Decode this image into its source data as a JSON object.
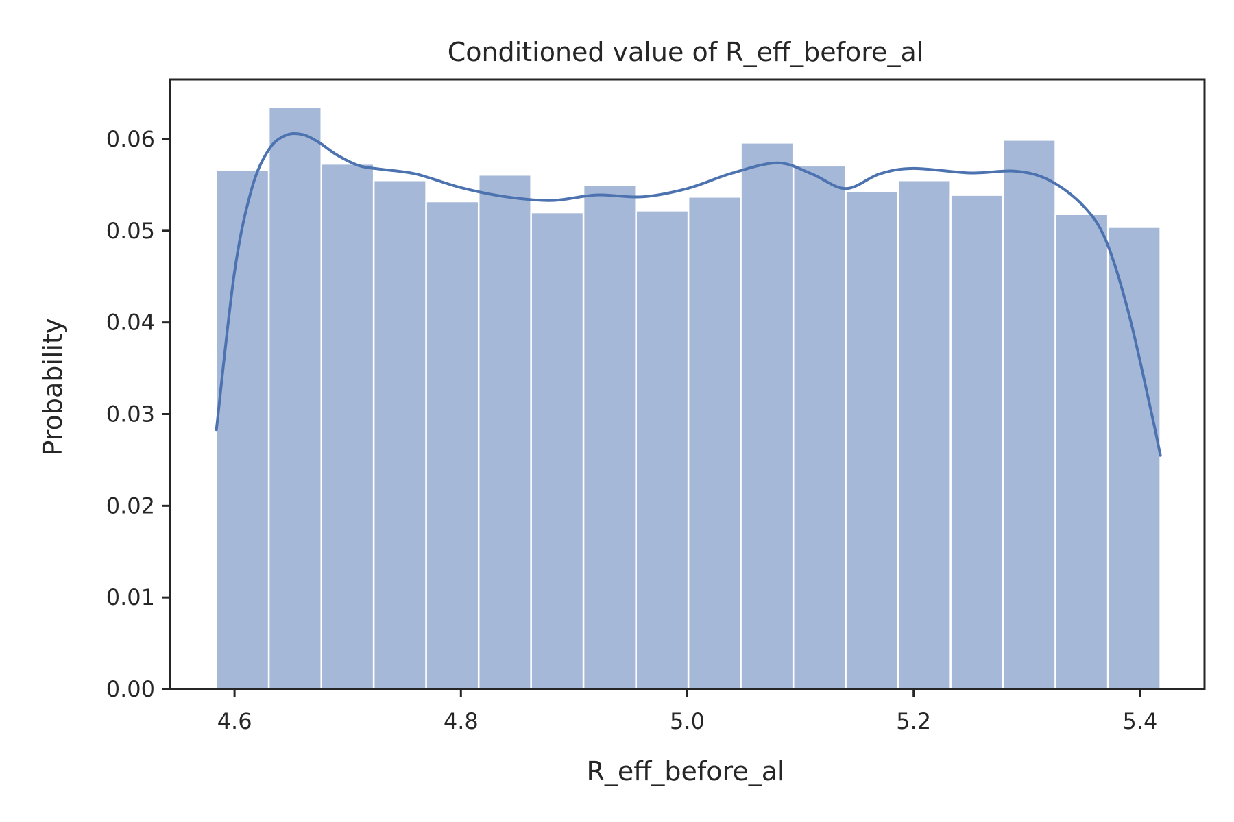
{
  "chart_data": {
    "type": "bar",
    "subtype": "histogram-with-kde",
    "title": "Conditioned value of R_eff_before_al",
    "xlabel": "R_eff_before_al",
    "ylabel": "Probability",
    "xlim": [
      4.543,
      5.457
    ],
    "ylim": [
      0.0,
      0.0665
    ],
    "grid": false,
    "legend": "none",
    "bar_color": "#a6b8d8",
    "line_color": "#4c72b0",
    "xticks": [
      4.6,
      4.8,
      5.0,
      5.2,
      5.4
    ],
    "xtick_labels": [
      "4.6",
      "4.8",
      "5.0",
      "5.2",
      "5.4"
    ],
    "yticks": [
      0.0,
      0.01,
      0.02,
      0.03,
      0.04,
      0.05,
      0.06
    ],
    "ytick_labels": [
      "0.00",
      "0.01",
      "0.02",
      "0.03",
      "0.04",
      "0.05",
      "0.06"
    ],
    "bin_edges": [
      4.584,
      4.6303,
      4.6767,
      4.723,
      4.7693,
      4.8157,
      4.862,
      4.9083,
      4.9547,
      5.001,
      5.0473,
      5.0937,
      5.14,
      5.1863,
      5.2327,
      5.279,
      5.3253,
      5.3717,
      5.418
    ],
    "values": [
      0.0566,
      0.0635,
      0.0573,
      0.0555,
      0.0532,
      0.0561,
      0.052,
      0.055,
      0.0522,
      0.0537,
      0.0596,
      0.0571,
      0.0543,
      0.0555,
      0.0539,
      0.0599,
      0.0518,
      0.0504
    ],
    "kde": {
      "x": [
        4.584,
        4.6,
        4.615,
        4.63,
        4.645,
        4.66,
        4.675,
        4.69,
        4.71,
        4.73,
        4.76,
        4.8,
        4.84,
        4.88,
        4.92,
        4.96,
        5.0,
        5.04,
        5.08,
        5.11,
        5.14,
        5.17,
        5.2,
        5.25,
        5.29,
        5.32,
        5.35,
        5.37,
        5.39,
        5.41,
        5.418
      ],
      "y": [
        0.0283,
        0.0455,
        0.0545,
        0.0588,
        0.0604,
        0.0605,
        0.0596,
        0.0583,
        0.0571,
        0.0567,
        0.0562,
        0.0547,
        0.0537,
        0.0533,
        0.0539,
        0.0537,
        0.0546,
        0.0563,
        0.0574,
        0.0562,
        0.0546,
        0.0562,
        0.0568,
        0.0563,
        0.0565,
        0.0555,
        0.0527,
        0.0489,
        0.041,
        0.0302,
        0.0255
      ]
    }
  }
}
